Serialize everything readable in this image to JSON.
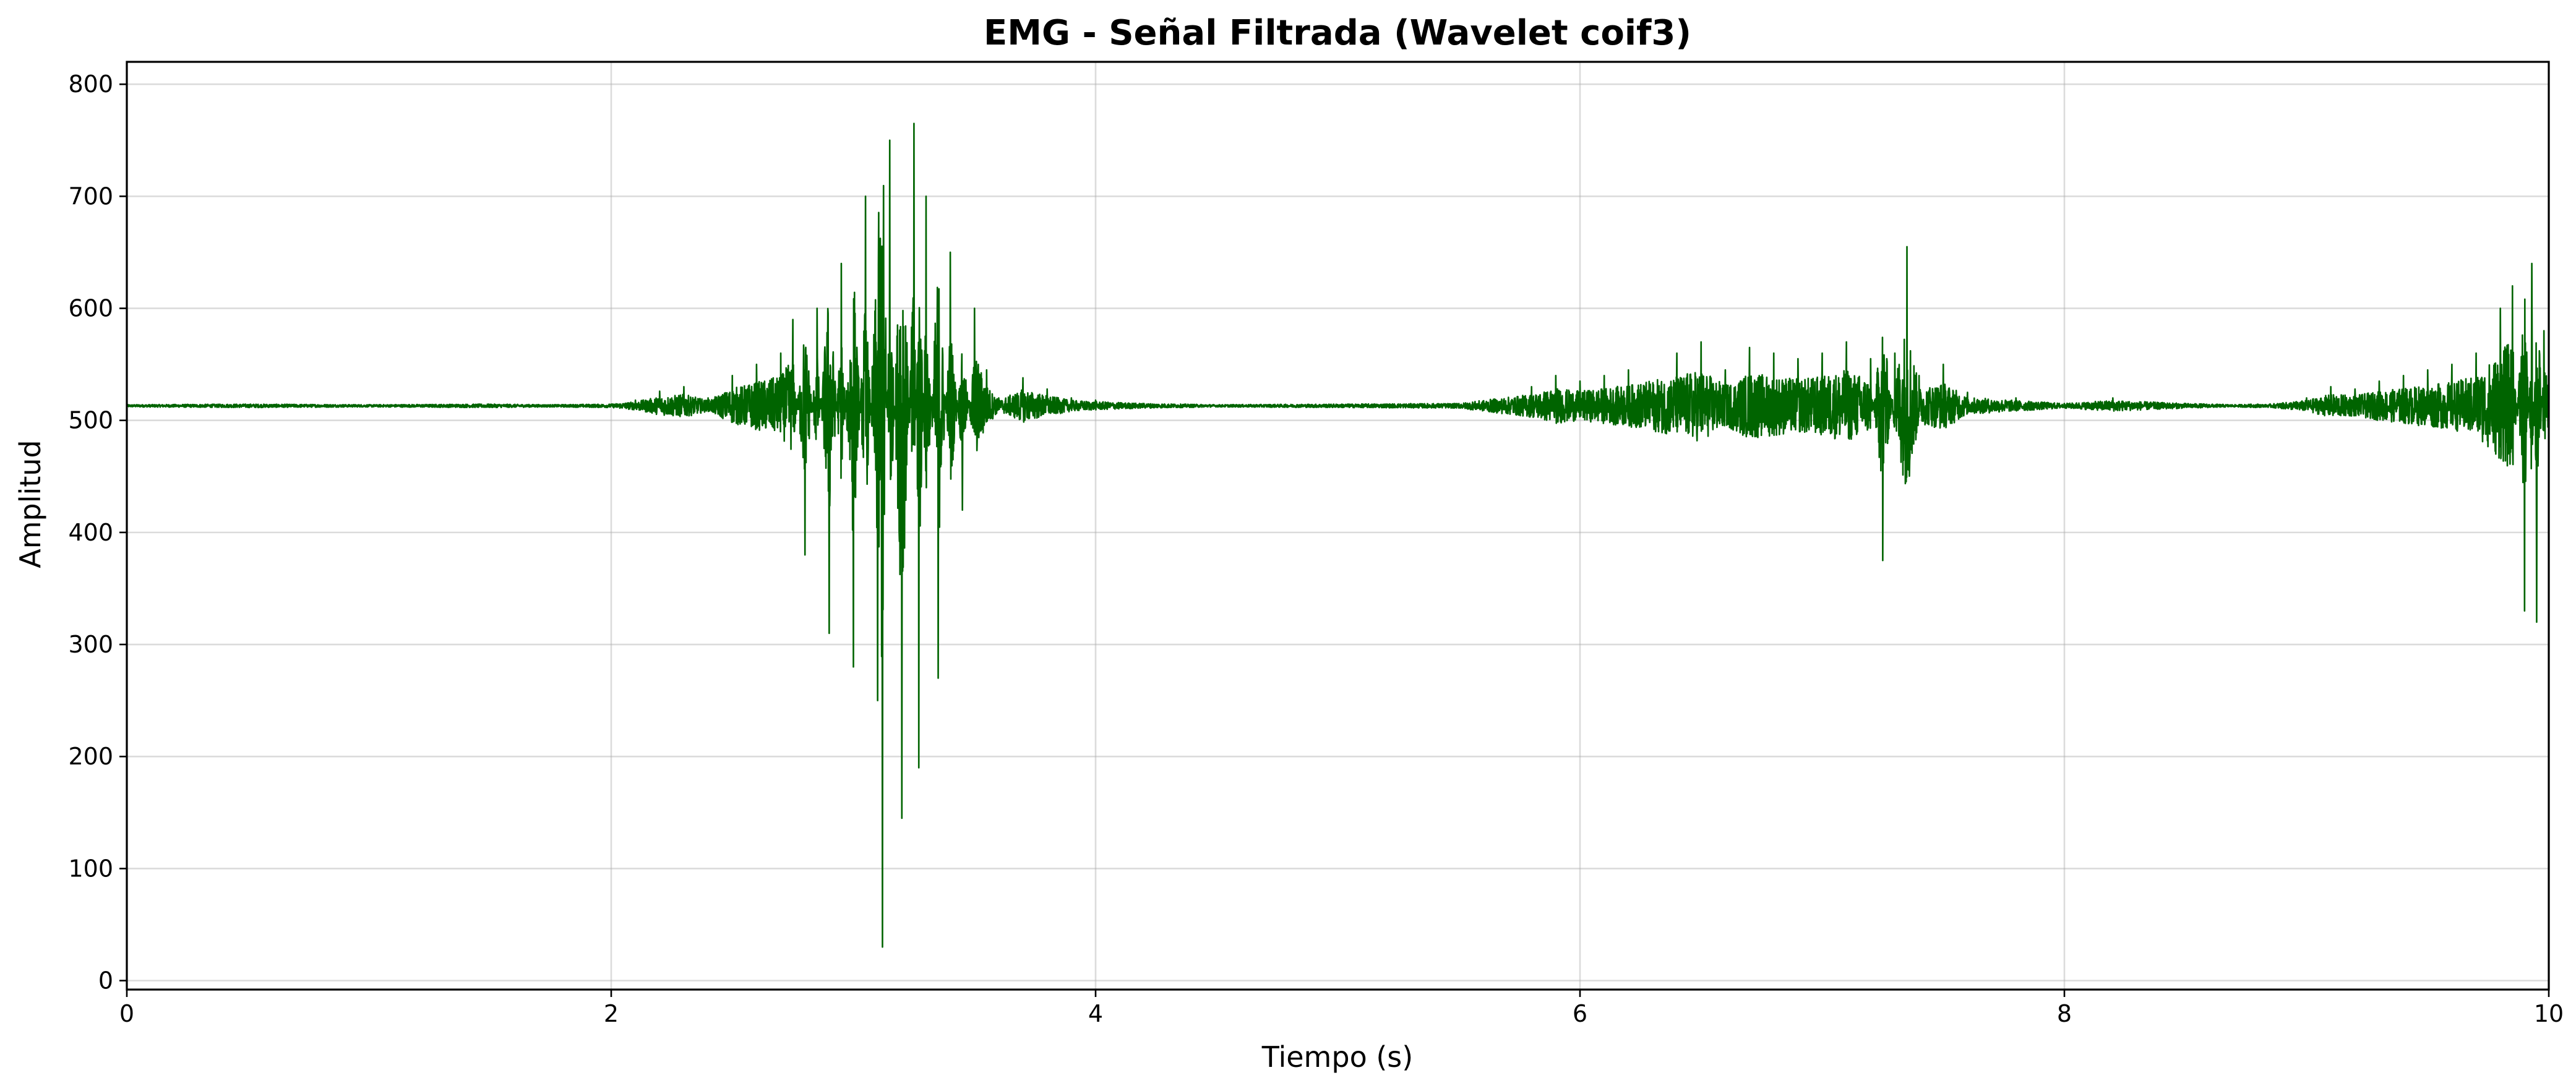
{
  "chart_data": {
    "type": "line",
    "title": "EMG - Señal Filtrada (Wavelet coif3)",
    "xlabel": "Tiempo (s)",
    "ylabel": "Amplitud",
    "xlim": [
      0,
      10
    ],
    "ylim": [
      -8,
      820
    ],
    "xticks": [
      0,
      2,
      4,
      6,
      8,
      10
    ],
    "xtick_labels": [
      "0",
      "2",
      "4",
      "6",
      "8",
      "10"
    ],
    "yticks": [
      0,
      100,
      200,
      300,
      400,
      500,
      600,
      700,
      800
    ],
    "ytick_labels": [
      "0",
      "100",
      "200",
      "300",
      "400",
      "500",
      "600",
      "700",
      "800"
    ],
    "grid": true,
    "legend": false,
    "line_color": "#006400",
    "baseline": 513,
    "series": [
      {
        "x": [
          0,
          0.5,
          1.0,
          1.5,
          2.0,
          2.1,
          2.2,
          2.3,
          2.4,
          2.5,
          2.6,
          2.7,
          2.75,
          2.8,
          2.85,
          2.9,
          2.95,
          3.0,
          3.05,
          3.1,
          3.12,
          3.15,
          3.2,
          3.25,
          3.27,
          3.3,
          3.35,
          3.4,
          3.45,
          3.5,
          3.55,
          3.6,
          3.7,
          3.8,
          3.9,
          4.0,
          4.2,
          4.5,
          5.0,
          5.5,
          5.8,
          5.9,
          6.0,
          6.1,
          6.2,
          6.4,
          6.5,
          6.6,
          6.7,
          6.8,
          6.9,
          7.0,
          7.1,
          7.2,
          7.25,
          7.3,
          7.35,
          7.4,
          7.5,
          7.6,
          7.8,
          8.0,
          8.2,
          8.5,
          8.8,
          9.0,
          9.1,
          9.2,
          9.3,
          9.4,
          9.5,
          9.6,
          9.7,
          9.8,
          9.85,
          9.9,
          9.93,
          9.95,
          9.98,
          10.0
        ],
        "y": [
          513,
          512,
          513,
          512,
          514,
          518,
          526,
          530,
          520,
          540,
          550,
          560,
          590,
          380,
          600,
          310,
          640,
          280,
          700,
          250,
          30,
          750,
          145,
          765,
          190,
          700,
          270,
          650,
          420,
          600,
          545,
          520,
          538,
          528,
          520,
          518,
          515,
          513,
          514,
          515,
          530,
          540,
          535,
          540,
          545,
          560,
          570,
          545,
          565,
          560,
          555,
          560,
          570,
          555,
          375,
          560,
          655,
          540,
          550,
          525,
          520,
          515,
          520,
          515,
          512,
          520,
          530,
          528,
          535,
          540,
          545,
          550,
          560,
          600,
          620,
          330,
          640,
          320,
          580,
          540
        ]
      }
    ]
  }
}
